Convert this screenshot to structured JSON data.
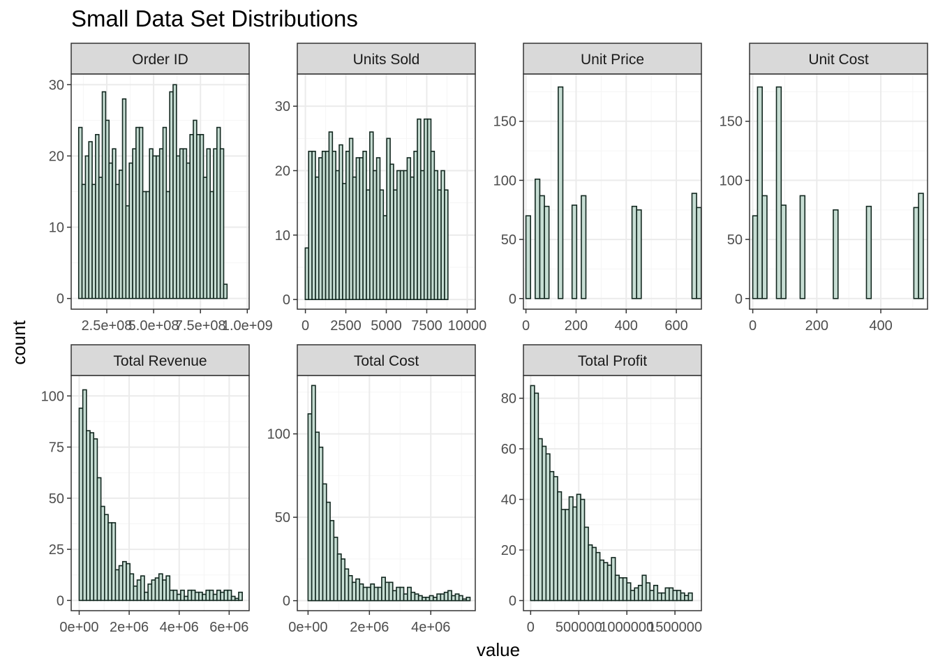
{
  "chart_data": {
    "type": "bar",
    "title": "Small Data Set Distributions",
    "xlabel": "value",
    "ylabel": "count",
    "grid": true,
    "bar_fill": "#c6ddd3",
    "bar_stroke": "#12271f",
    "strip_fill": "#d9d9d9",
    "panel_border": "#333333",
    "grid_major": "#ebebeb",
    "grid_minor": "#f5f5f5",
    "facets": [
      {
        "name": "Order ID",
        "xlim": [
          60000000,
          1010000000
        ],
        "xticks": [
          {
            "value": 250000000,
            "label": "2.5e+08"
          },
          {
            "value": 500000000,
            "label": "5.0e+08"
          },
          {
            "value": 750000000,
            "label": "7.5e+08"
          },
          {
            "value": 1000000000,
            "label": "1.0e+09"
          }
        ],
        "ylim": [
          -1.5,
          31.5
        ],
        "yticks": [
          0,
          10,
          20,
          30
        ],
        "bins": {
          "start": 100000000,
          "width": 18000000
        },
        "values": [
          24,
          16,
          20,
          22,
          16,
          23,
          17,
          29,
          25,
          19,
          21,
          16,
          18,
          28,
          13,
          19,
          21,
          24,
          24,
          15,
          15,
          21,
          20,
          20,
          21,
          24,
          15,
          29,
          30,
          20,
          21,
          21,
          19,
          23,
          25,
          23,
          23,
          17,
          21,
          15,
          21,
          24,
          21,
          2
        ]
      },
      {
        "name": "Units Sold",
        "xlim": [
          -500,
          10500
        ],
        "xticks": [
          {
            "value": 0,
            "label": "0"
          },
          {
            "value": 2500,
            "label": "2500"
          },
          {
            "value": 5000,
            "label": "5000"
          },
          {
            "value": 7500,
            "label": "7500"
          },
          {
            "value": 10000,
            "label": "10000"
          }
        ],
        "ylim": [
          -1.5,
          35
        ],
        "yticks": [
          0,
          10,
          20,
          30
        ],
        "bins": {
          "start": -10,
          "width": 210
        },
        "values": [
          8,
          23,
          23,
          19,
          22,
          23,
          23,
          26,
          23,
          20,
          24,
          18,
          23,
          25,
          19,
          22,
          22,
          23,
          17,
          26,
          20,
          22,
          17,
          13,
          25,
          21,
          17,
          20,
          20,
          20,
          22,
          19,
          23,
          28,
          20,
          28,
          28,
          23,
          20,
          17,
          20,
          17
        ]
      },
      {
        "name": "Unit Price",
        "xlim": [
          -10,
          700
        ],
        "xticks": [
          {
            "value": 0,
            "label": "0"
          },
          {
            "value": 200,
            "label": "200"
          },
          {
            "value": 400,
            "label": "400"
          },
          {
            "value": 600,
            "label": "600"
          }
        ],
        "ylim": [
          -9,
          190
        ],
        "yticks": [
          0,
          50,
          100,
          150
        ],
        "bins": {
          "start": 0,
          "width": 18.4
        },
        "values": [
          70,
          0,
          101,
          87,
          78,
          0,
          0,
          179,
          0,
          0,
          79,
          0,
          87,
          0,
          0,
          0,
          0,
          0,
          0,
          0,
          0,
          0,
          0,
          78,
          75,
          0,
          0,
          0,
          0,
          0,
          0,
          0,
          0,
          0,
          0,
          0,
          89,
          77
        ]
      },
      {
        "name": "Unit Cost",
        "xlim": [
          -10,
          546
        ],
        "xticks": [
          {
            "value": 0,
            "label": "0"
          },
          {
            "value": 200,
            "label": "200"
          },
          {
            "value": 400,
            "label": "400"
          }
        ],
        "ylim": [
          -9,
          190
        ],
        "yticks": [
          0,
          50,
          100,
          150
        ],
        "bins": {
          "start": 0,
          "width": 14.8
        },
        "values": [
          70,
          179,
          87,
          0,
          0,
          179,
          79,
          0,
          0,
          0,
          87,
          0,
          0,
          0,
          0,
          0,
          0,
          75,
          0,
          0,
          0,
          0,
          0,
          0,
          78,
          0,
          0,
          0,
          0,
          0,
          0,
          0,
          0,
          0,
          77,
          89
        ]
      },
      {
        "name": "Total Revenue",
        "xlim": [
          -320000,
          6800000
        ],
        "xticks": [
          {
            "value": 0,
            "label": "0e+00"
          },
          {
            "value": 2000000,
            "label": "2e+06"
          },
          {
            "value": 4000000,
            "label": "4e+06"
          },
          {
            "value": 6000000,
            "label": "6e+06"
          }
        ],
        "ylim": [
          -5,
          110
        ],
        "yticks": [
          0,
          25,
          50,
          75,
          100
        ],
        "bins": {
          "start": 0,
          "width": 145000
        },
        "values": [
          94,
          103,
          83,
          82,
          79,
          60,
          46,
          42,
          38,
          38,
          15,
          17,
          19,
          18,
          13,
          7,
          10,
          12,
          4,
          8,
          10,
          11,
          13,
          10,
          12,
          5,
          5,
          3,
          5,
          2,
          5,
          5,
          4,
          4,
          3,
          5,
          5,
          3,
          5,
          4,
          5,
          5,
          2,
          1,
          4
        ]
      },
      {
        "name": "Total Cost",
        "xlim": [
          -350000,
          5450000
        ],
        "xticks": [
          {
            "value": 0,
            "label": "0e+00"
          },
          {
            "value": 2000000,
            "label": "2e+06"
          },
          {
            "value": 4000000,
            "label": "4e+06"
          }
        ],
        "ylim": [
          -6,
          135
        ],
        "yticks": [
          0,
          50,
          100
        ],
        "bins": {
          "start": 0,
          "width": 120000
        },
        "values": [
          112,
          129,
          101,
          92,
          70,
          59,
          48,
          38,
          28,
          25,
          19,
          15,
          11,
          13,
          10,
          8,
          8,
          10,
          8,
          8,
          14,
          11,
          11,
          6,
          8,
          8,
          4,
          8,
          5,
          4,
          3,
          2,
          2,
          3,
          2,
          4,
          4,
          5,
          6,
          3,
          4,
          3,
          1,
          2
        ]
      },
      {
        "name": "Total Profit",
        "xlim": [
          -75000,
          1775000
        ],
        "xticks": [
          {
            "value": 0,
            "label": "0"
          },
          {
            "value": 500000,
            "label": "500000"
          },
          {
            "value": 1000000,
            "label": "1000000"
          },
          {
            "value": 1500000,
            "label": "1500000"
          }
        ],
        "ylim": [
          -4,
          89
        ],
        "yticks": [
          0,
          20,
          40,
          60,
          80
        ],
        "bins": {
          "start": 0,
          "width": 40000
        },
        "values": [
          85,
          82,
          64,
          61,
          58,
          51,
          49,
          43,
          36,
          36,
          41,
          37,
          42,
          40,
          29,
          22,
          21,
          19,
          16,
          15,
          14,
          17,
          10,
          9,
          9,
          7,
          4,
          5,
          6,
          10,
          7,
          4,
          6,
          3,
          3,
          5,
          5,
          4,
          4,
          3,
          2,
          3
        ]
      }
    ]
  }
}
